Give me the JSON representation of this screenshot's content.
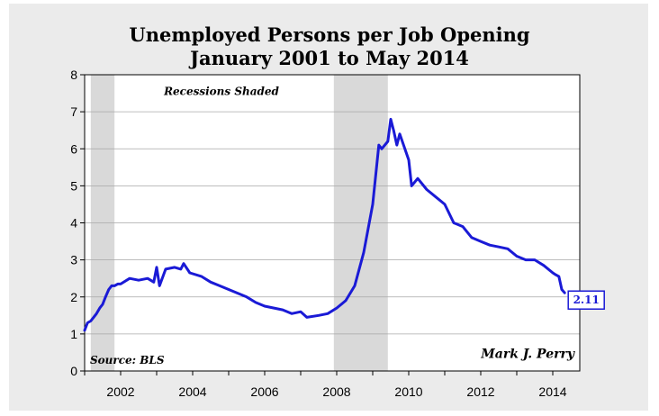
{
  "chart_data": {
    "type": "line",
    "title": "Unemployed Persons per Job Opening",
    "subtitle": "January 2001 to May 2014",
    "xlabel": "",
    "ylabel": "",
    "xlim": [
      2001.0,
      2014.75
    ],
    "ylim": [
      0,
      8
    ],
    "xticks": [
      2002,
      2004,
      2006,
      2008,
      2010,
      2012,
      2014
    ],
    "yticks": [
      0,
      1,
      2,
      3,
      4,
      5,
      6,
      7,
      8
    ],
    "grid": true,
    "line_color": "#1a1ad6",
    "shade_color": "#d9d9d9",
    "recessions": [
      [
        2001.17,
        2001.83
      ],
      [
        2007.92,
        2009.42
      ]
    ],
    "recession_label": "Recessions Shaded",
    "source": "Source: BLS",
    "author": "Mark J. Perry",
    "last_value_label": "2.11",
    "series": [
      {
        "x": [
          2001.0,
          2001.08,
          2001.17,
          2001.25,
          2001.33,
          2001.42,
          2001.5,
          2001.58,
          2001.67,
          2001.75,
          2001.83,
          2001.92,
          2002.0,
          2002.25,
          2002.5,
          2002.75,
          2002.92,
          2003.0,
          2003.08,
          2003.25,
          2003.5,
          2003.67,
          2003.75,
          2003.92,
          2004.25,
          2004.5,
          2004.75,
          2005.0,
          2005.5,
          2005.75,
          2006.0,
          2006.5,
          2006.75,
          2007.0,
          2007.17,
          2007.5,
          2007.75,
          2008.0,
          2008.25,
          2008.5,
          2008.75,
          2009.0,
          2009.17,
          2009.25,
          2009.42,
          2009.5,
          2009.58,
          2009.67,
          2009.75,
          2010.0,
          2010.08,
          2010.25,
          2010.5,
          2010.75,
          2011.0,
          2011.25,
          2011.5,
          2011.75,
          2012.0,
          2012.25,
          2012.5,
          2012.75,
          2013.0,
          2013.25,
          2013.5,
          2013.75,
          2014.0,
          2014.08,
          2014.17,
          2014.25,
          2014.33
        ],
        "y": [
          1.1,
          1.3,
          1.35,
          1.45,
          1.55,
          1.7,
          1.8,
          2.0,
          2.2,
          2.3,
          2.3,
          2.35,
          2.35,
          2.5,
          2.45,
          2.5,
          2.4,
          2.8,
          2.3,
          2.75,
          2.8,
          2.75,
          2.9,
          2.65,
          2.55,
          2.4,
          2.3,
          2.2,
          2.0,
          1.85,
          1.75,
          1.65,
          1.55,
          1.6,
          1.45,
          1.5,
          1.55,
          1.7,
          1.9,
          2.3,
          3.2,
          4.5,
          6.1,
          6.0,
          6.2,
          6.8,
          6.5,
          6.1,
          6.4,
          5.7,
          5.0,
          5.2,
          4.9,
          4.7,
          4.5,
          4.0,
          3.9,
          3.6,
          3.5,
          3.4,
          3.35,
          3.3,
          3.1,
          3.0,
          3.0,
          2.85,
          2.65,
          2.6,
          2.55,
          2.2,
          2.11
        ]
      }
    ]
  }
}
